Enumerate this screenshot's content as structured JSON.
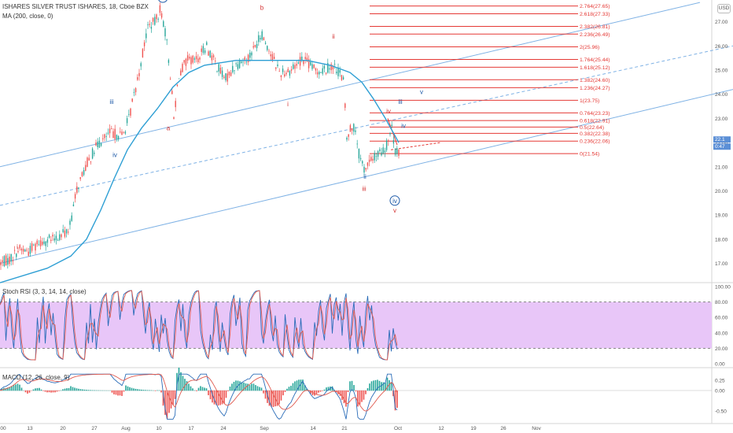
{
  "header": {
    "title": "ISHARES SILVER TRUST ISHARES, 1",
    "interval": "8",
    "exchange": "Cboe BZX",
    "ma_label": "MA (200, close, 0)",
    "currency": "USD"
  },
  "rsi_panel": {
    "label": "Stoch RSI (3, 3, 14, 14, close)"
  },
  "macd_panel": {
    "label": "MACD (12, 26, close, 9)"
  },
  "chart_data": [
    {
      "type": "candlestick",
      "ylim": [
        16.3,
        27.9
      ],
      "yticks": [
        17.0,
        18.0,
        19.0,
        20.0,
        21.0,
        22.0,
        23.0,
        24.0,
        25.0,
        26.0,
        27.0
      ],
      "ytick_labels": [
        "17.00",
        "18.00",
        "19.00",
        "20.00",
        "21.00",
        "22.00",
        "23.00",
        "24.00",
        "25.00",
        "26.00",
        "27.00"
      ],
      "x_ticks": [
        "00",
        "13",
        "20",
        "27",
        "Aug",
        "10",
        "17",
        "24",
        "Sep",
        "14",
        "21",
        "Oct",
        "12",
        "19",
        "26",
        "Nov"
      ],
      "price_path": [
        [
          0,
          17.0
        ],
        [
          14,
          17.2
        ],
        [
          24,
          17.6
        ],
        [
          36,
          17.5
        ],
        [
          50,
          17.9
        ],
        [
          70,
          18.0
        ],
        [
          88,
          18.4
        ],
        [
          98,
          20.1
        ],
        [
          110,
          21.1
        ],
        [
          124,
          21.9
        ],
        [
          140,
          22.4
        ],
        [
          156,
          22.3
        ],
        [
          164,
          23.0
        ],
        [
          176,
          24.8
        ],
        [
          188,
          26.8
        ],
        [
          198,
          27.0
        ],
        [
          204,
          27.6
        ],
        [
          211,
          26.4
        ],
        [
          217,
          24.7
        ],
        [
          221,
          23.0
        ],
        [
          227,
          24.8
        ],
        [
          238,
          25.4
        ],
        [
          250,
          25.4
        ],
        [
          262,
          26.0
        ],
        [
          272,
          25.4
        ],
        [
          286,
          24.6
        ],
        [
          300,
          25.2
        ],
        [
          318,
          25.6
        ],
        [
          333,
          26.5
        ],
        [
          344,
          25.7
        ],
        [
          356,
          24.9
        ],
        [
          370,
          25.0
        ],
        [
          385,
          25.5
        ],
        [
          400,
          25.0
        ],
        [
          412,
          25.0
        ],
        [
          422,
          25.2
        ],
        [
          432,
          24.9
        ],
        [
          438,
          24.4
        ],
        [
          440,
          22.0
        ],
        [
          446,
          22.7
        ],
        [
          452,
          22.5
        ],
        [
          457,
          21.4
        ],
        [
          463,
          20.9
        ],
        [
          470,
          21.2
        ],
        [
          480,
          21.5
        ],
        [
          490,
          21.7
        ],
        [
          498,
          22.6
        ],
        [
          503,
          21.6
        ],
        [
          507,
          21.6
        ]
      ],
      "ma200_path": [
        [
          0,
          16.2
        ],
        [
          60,
          16.8
        ],
        [
          90,
          17.3
        ],
        [
          110,
          18.0
        ],
        [
          128,
          19.2
        ],
        [
          145,
          20.5
        ],
        [
          162,
          21.7
        ],
        [
          180,
          22.6
        ],
        [
          200,
          23.4
        ],
        [
          220,
          24.3
        ],
        [
          240,
          24.9
        ],
        [
          260,
          25.2
        ],
        [
          280,
          25.3
        ],
        [
          300,
          25.4
        ],
        [
          330,
          25.4
        ],
        [
          360,
          25.4
        ],
        [
          390,
          25.4
        ],
        [
          420,
          25.2
        ],
        [
          445,
          24.9
        ],
        [
          460,
          24.5
        ],
        [
          475,
          23.8
        ],
        [
          490,
          23.0
        ],
        [
          507,
          22.0
        ]
      ],
      "channel_lines": [
        {
          "style": "solid",
          "from": [
            0,
            21.0
          ],
          "to": [
            890,
            27.8
          ]
        },
        {
          "style": "dashed",
          "from": [
            0,
            19.4
          ],
          "to": [
            932,
            26.0
          ]
        },
        {
          "style": "solid",
          "from": [
            0,
            17.0
          ],
          "to": [
            932,
            24.2
          ]
        }
      ],
      "fib_levels": [
        {
          "label": "0(21.54)",
          "value": 21.54
        },
        {
          "label": "0.236(22.06)",
          "value": 22.06
        },
        {
          "label": "0.382(22.38)",
          "value": 22.38
        },
        {
          "label": "0.5(22.64)",
          "value": 22.64
        },
        {
          "label": "0.618(22.91)",
          "value": 22.91
        },
        {
          "label": "0.764(23.23)",
          "value": 23.23
        },
        {
          "label": "1(23.75)",
          "value": 23.75
        },
        {
          "label": "1.236(24.27)",
          "value": 24.27
        },
        {
          "label": "1.382(24.60)",
          "value": 24.6
        },
        {
          "label": "1.618(25.12)",
          "value": 25.12
        },
        {
          "label": "1.764(25.44)",
          "value": 25.44
        },
        {
          "label": "2(25.96)",
          "value": 25.96
        },
        {
          "label": "2.236(26.49)",
          "value": 26.49
        },
        {
          "label": "2.382(26.81)",
          "value": 26.81
        },
        {
          "label": "2.618(27.33)",
          "value": 27.33
        },
        {
          "label": "2.764(27.65)",
          "value": 27.65
        }
      ],
      "wave_labels": [
        {
          "text": "i",
          "color": "#d32f2f",
          "x": 22,
          "value": 17.6
        },
        {
          "text": "iii",
          "color": "#1e5aa8",
          "x": 142,
          "value": 23.6
        },
        {
          "text": "iv",
          "color": "#1e5aa8",
          "x": 146,
          "value": 21.4
        },
        {
          "text": "v",
          "color": "#1e5aa8",
          "x": 195,
          "value": 27.9
        },
        {
          "text": "iii",
          "color": "#1e5aa8",
          "x": 207,
          "value": 27.9,
          "circled": true
        },
        {
          "text": "a",
          "color": "#d32f2f",
          "x": 214,
          "value": 22.5
        },
        {
          "text": "b",
          "color": "#d32f2f",
          "x": 333,
          "value": 27.5
        },
        {
          "text": "i",
          "color": "#d32f2f",
          "x": 366,
          "value": 23.5
        },
        {
          "text": "ii",
          "color": "#d32f2f",
          "x": 424,
          "value": 26.3
        },
        {
          "text": "ii",
          "color": "#1e5aa8",
          "x": 464,
          "value": 20.5
        },
        {
          "text": "iii",
          "color": "#d32f2f",
          "x": 463,
          "value": 20.0
        },
        {
          "text": "iv",
          "color": "#d32f2f",
          "x": 494,
          "value": 23.2
        },
        {
          "text": "iii",
          "color": "#1e5aa8",
          "x": 509,
          "value": 23.6
        },
        {
          "text": "iv",
          "color": "#1e5aa8",
          "x": 513,
          "value": 22.6
        },
        {
          "text": "v",
          "color": "#1e5aa8",
          "x": 536,
          "value": 24.0
        },
        {
          "text": "iv",
          "color": "#1e5aa8",
          "x": 502,
          "value": 19.5,
          "circled": true
        },
        {
          "text": "v",
          "color": "#d32f2f",
          "x": 502,
          "value": 19.1
        }
      ],
      "last_price_tags": [
        "22.1",
        "0:47"
      ]
    },
    {
      "type": "line",
      "title": "Stoch RSI (3, 3, 14, 14, close)",
      "ylim": [
        -2,
        102
      ],
      "yticks": [
        0,
        20,
        40,
        60,
        80,
        100
      ],
      "ytick_labels": [
        "0.00",
        "20.00",
        "40.00",
        "60.00",
        "80.00",
        "100.00"
      ],
      "band": [
        20,
        80
      ],
      "series": [
        {
          "color": "#2a6cb8"
        },
        {
          "color": "#e05a4f"
        }
      ]
    },
    {
      "type": "line",
      "title": "MACD (12, 26, close, 9)",
      "ylim": [
        -0.75,
        0.5
      ],
      "yticks": [
        -0.5,
        0.0,
        0.25
      ],
      "ytick_labels": [
        "-0.50",
        "0.00",
        "0.25"
      ],
      "series": [
        {
          "color": "#2a6cb8"
        },
        {
          "color": "#e05a4f"
        }
      ]
    }
  ],
  "colors": {
    "up": "#26a69a",
    "down": "#ef5350",
    "ma": "#2e9fd4",
    "channel": "#7fb2e5",
    "fib": "#e53935",
    "fib_text": "#e53935",
    "rsi_band": "#e8c6f8"
  }
}
